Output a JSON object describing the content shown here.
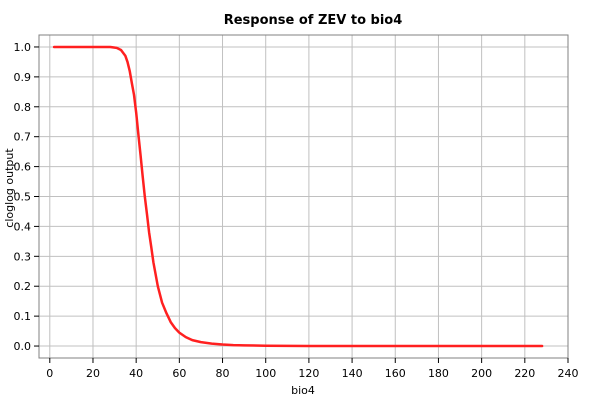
{
  "chart_data": {
    "type": "line",
    "title": "Response of ZEV to bio4",
    "xlabel": "bio4",
    "ylabel": "cloglog output",
    "xlim": [
      -5,
      240
    ],
    "ylim": [
      -0.04,
      1.04
    ],
    "xticks": [
      0,
      20,
      40,
      60,
      80,
      100,
      120,
      140,
      160,
      180,
      200,
      220,
      240
    ],
    "yticks": [
      0.0,
      0.1,
      0.2,
      0.3,
      0.4,
      0.5,
      0.6,
      0.7,
      0.8,
      0.9,
      1.0
    ],
    "xtick_labels": [
      "0",
      "20",
      "40",
      "60",
      "80",
      "100",
      "120",
      "140",
      "160",
      "180",
      "200",
      "220",
      "240"
    ],
    "ytick_labels": [
      "0.0",
      "0.1",
      "0.2",
      "0.3",
      "0.4",
      "0.5",
      "0.6",
      "0.7",
      "0.8",
      "0.9",
      "1.0"
    ],
    "grid": true,
    "series": [
      {
        "color": "#ff2020",
        "x": [
          2,
          10,
          20,
          28,
          31,
          33,
          35,
          36,
          37,
          38,
          39,
          40,
          41,
          42,
          43,
          44,
          45,
          46,
          47,
          48,
          50,
          52,
          54,
          56,
          58,
          60,
          63,
          66,
          70,
          75,
          80,
          85,
          90,
          100,
          120,
          150,
          180,
          210,
          228
        ],
        "y": [
          1.0,
          1.0,
          1.0,
          1.0,
          0.997,
          0.99,
          0.97,
          0.95,
          0.92,
          0.88,
          0.84,
          0.78,
          0.71,
          0.64,
          0.57,
          0.5,
          0.44,
          0.38,
          0.33,
          0.28,
          0.2,
          0.145,
          0.11,
          0.08,
          0.06,
          0.045,
          0.03,
          0.02,
          0.013,
          0.008,
          0.005,
          0.003,
          0.002,
          0.001,
          0.0,
          0.0,
          0.0,
          0.0,
          0.0
        ]
      }
    ]
  }
}
